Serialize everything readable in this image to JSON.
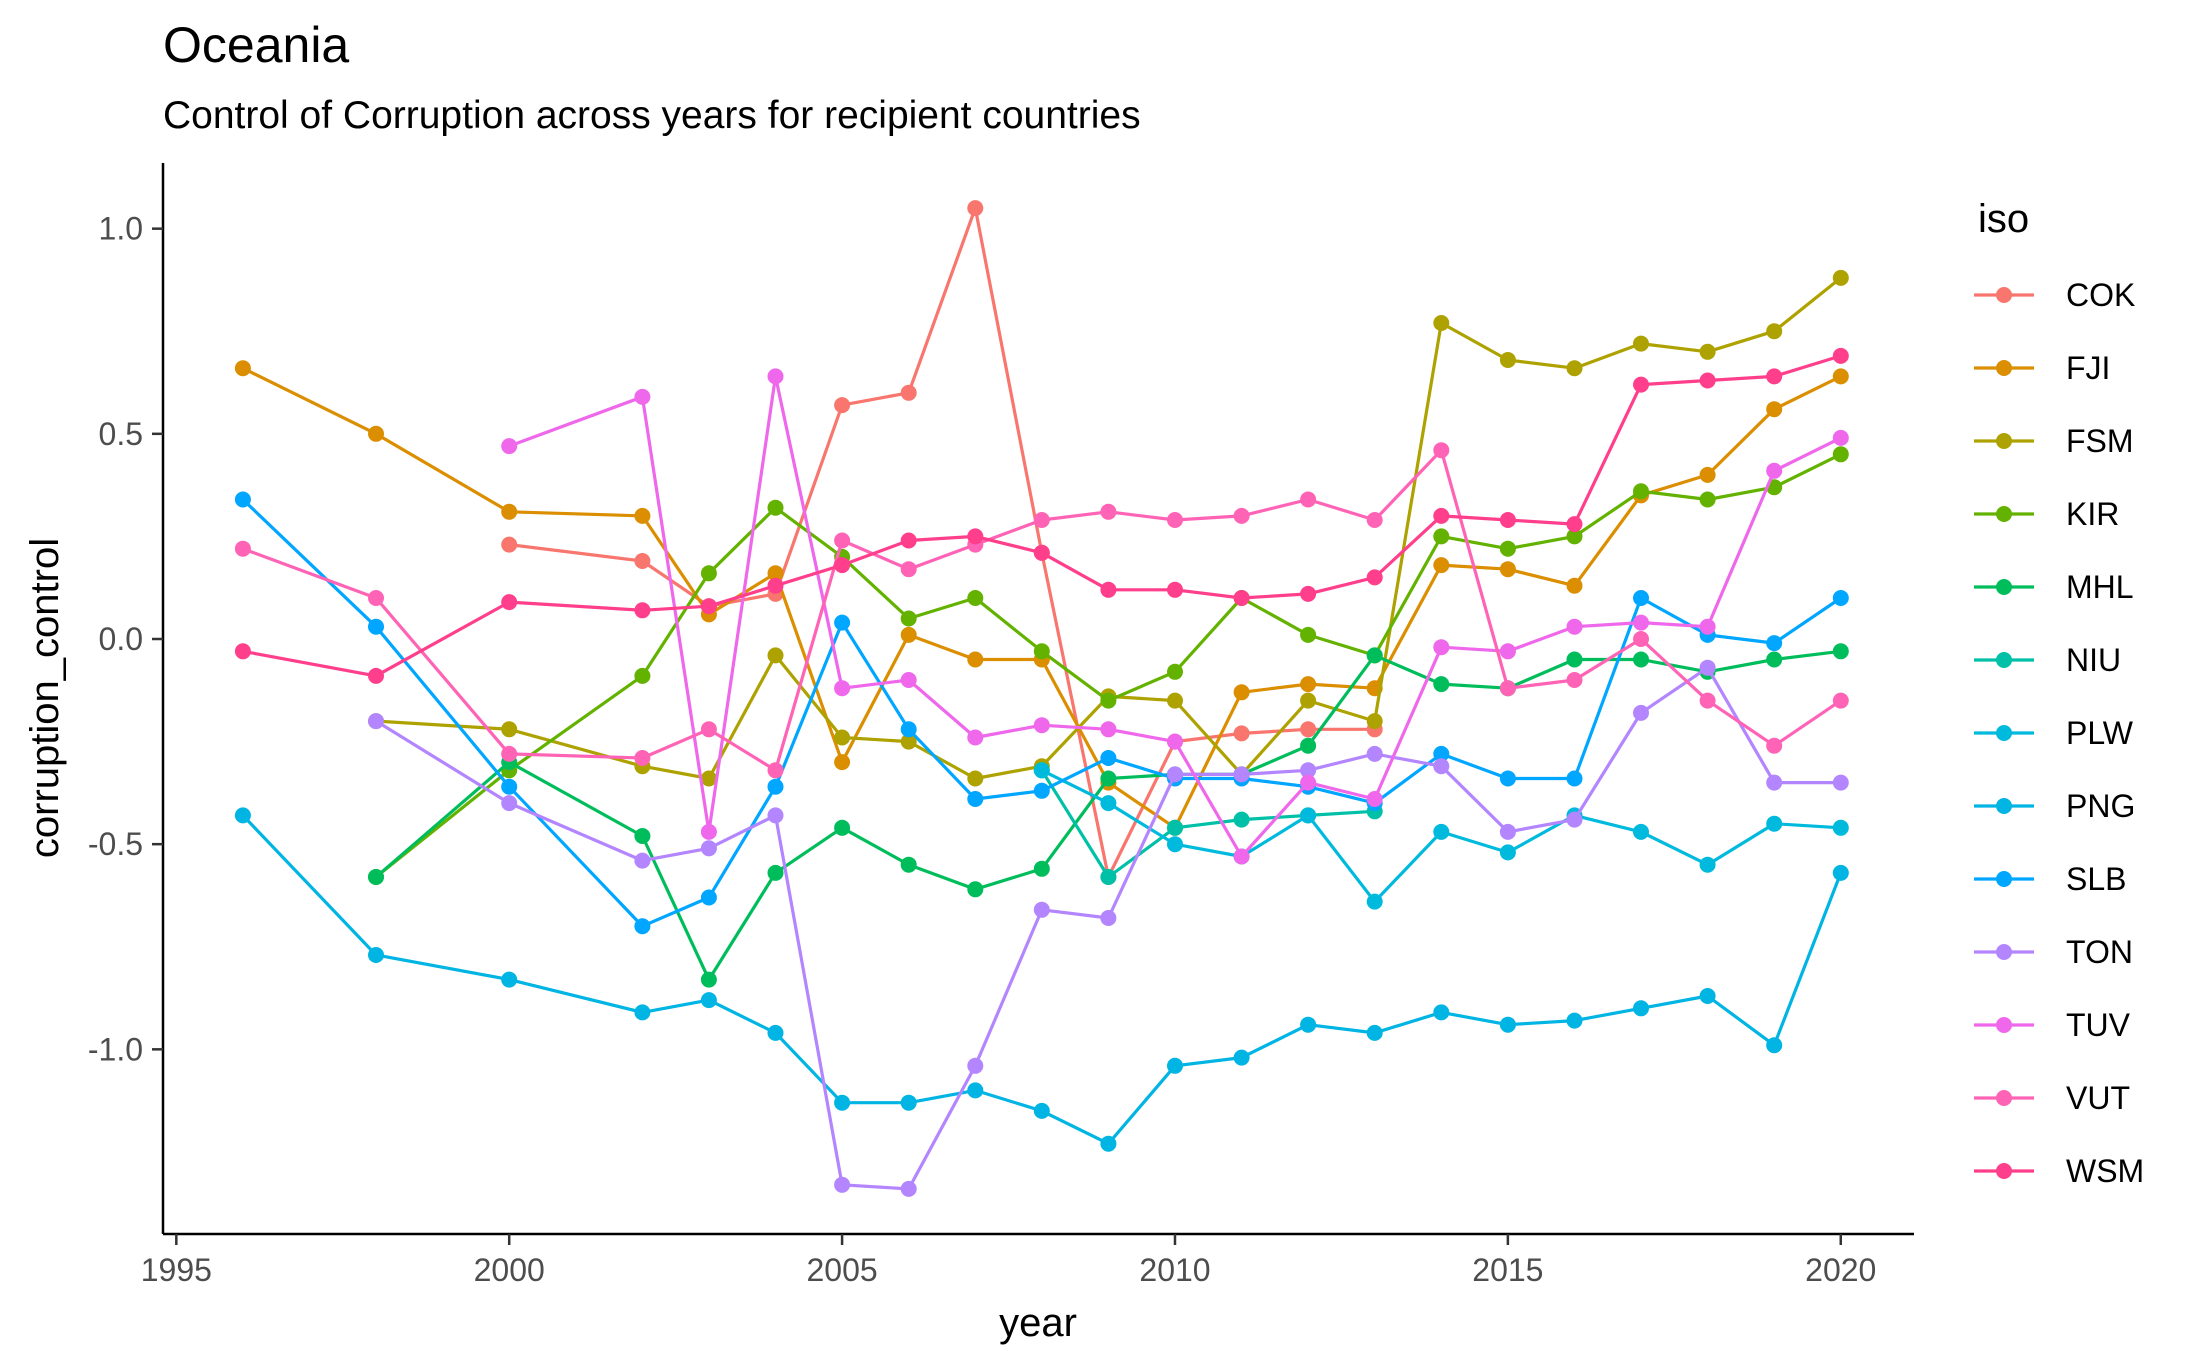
{
  "chart_data": {
    "type": "line",
    "title": "Oceania",
    "subtitle": "Control of Corruption across years for recipient countries",
    "xlabel": "year",
    "ylabel": "corruption_control",
    "xlim": [
      1994.8,
      2021.1
    ],
    "ylim": [
      -1.45,
      1.16
    ],
    "xticks": [
      1995,
      2000,
      2005,
      2010,
      2015,
      2020
    ],
    "yticks": [
      -1.0,
      -0.5,
      0.0,
      0.5,
      1.0
    ],
    "ytick_labels": [
      "-1.0",
      "-0.5",
      "0.0",
      "0.5",
      "1.0"
    ],
    "legend_title": "iso",
    "legend_position": "right",
    "grid": false,
    "series": [
      {
        "name": "COK",
        "color": "#F8766D",
        "points": [
          [
            2000,
            0.23
          ],
          [
            2002,
            0.19
          ],
          [
            2003,
            0.08
          ],
          [
            2004,
            0.11
          ],
          [
            2005,
            0.57
          ],
          [
            2006,
            0.6
          ],
          [
            2007,
            1.05
          ],
          [
            2008,
            0.21
          ],
          [
            2009,
            -0.58
          ],
          [
            2010,
            -0.25
          ],
          [
            2011,
            -0.23
          ],
          [
            2012,
            -0.22
          ],
          [
            2013,
            -0.22
          ]
        ]
      },
      {
        "name": "FJI",
        "color": "#DB8E00",
        "points": [
          [
            1996,
            0.66
          ],
          [
            1998,
            0.5
          ],
          [
            2000,
            0.31
          ],
          [
            2002,
            0.3
          ],
          [
            2003,
            0.06
          ],
          [
            2004,
            0.16
          ],
          [
            2005,
            -0.3
          ],
          [
            2006,
            0.01
          ],
          [
            2007,
            -0.05
          ],
          [
            2008,
            -0.05
          ],
          [
            2009,
            -0.35
          ],
          [
            2010,
            -0.46
          ],
          [
            2011,
            -0.13
          ],
          [
            2012,
            -0.11
          ],
          [
            2013,
            -0.12
          ],
          [
            2014,
            0.18
          ],
          [
            2015,
            0.17
          ],
          [
            2016,
            0.13
          ],
          [
            2017,
            0.35
          ],
          [
            2018,
            0.4
          ],
          [
            2019,
            0.56
          ],
          [
            2020,
            0.64
          ]
        ]
      },
      {
        "name": "FSM",
        "color": "#AEA200",
        "points": [
          [
            1998,
            -0.2
          ],
          [
            2000,
            -0.22
          ],
          [
            2002,
            -0.31
          ],
          [
            2003,
            -0.34
          ],
          [
            2004,
            -0.04
          ],
          [
            2005,
            -0.24
          ],
          [
            2006,
            -0.25
          ],
          [
            2007,
            -0.34
          ],
          [
            2008,
            -0.31
          ],
          [
            2009,
            -0.14
          ],
          [
            2010,
            -0.15
          ],
          [
            2011,
            -0.33
          ],
          [
            2012,
            -0.15
          ],
          [
            2013,
            -0.2
          ],
          [
            2014,
            0.77
          ],
          [
            2015,
            0.68
          ],
          [
            2016,
            0.66
          ],
          [
            2017,
            0.72
          ],
          [
            2018,
            0.7
          ],
          [
            2019,
            0.75
          ],
          [
            2020,
            0.88
          ]
        ]
      },
      {
        "name": "KIR",
        "color": "#64B200",
        "points": [
          [
            1998,
            -0.58
          ],
          [
            2000,
            -0.32
          ],
          [
            2002,
            -0.09
          ],
          [
            2003,
            0.16
          ],
          [
            2004,
            0.32
          ],
          [
            2005,
            0.2
          ],
          [
            2006,
            0.05
          ],
          [
            2007,
            0.1
          ],
          [
            2008,
            -0.03
          ],
          [
            2009,
            -0.15
          ],
          [
            2010,
            -0.08
          ],
          [
            2011,
            0.1
          ],
          [
            2012,
            0.01
          ],
          [
            2013,
            -0.04
          ],
          [
            2014,
            0.25
          ],
          [
            2015,
            0.22
          ],
          [
            2016,
            0.25
          ],
          [
            2017,
            0.36
          ],
          [
            2018,
            0.34
          ],
          [
            2019,
            0.37
          ],
          [
            2020,
            0.45
          ]
        ]
      },
      {
        "name": "MHL",
        "color": "#00BD5C",
        "points": [
          [
            1998,
            -0.58
          ],
          [
            2000,
            -0.3
          ],
          [
            2002,
            -0.48
          ],
          [
            2003,
            -0.83
          ],
          [
            2004,
            -0.57
          ],
          [
            2005,
            -0.46
          ],
          [
            2006,
            -0.55
          ],
          [
            2007,
            -0.61
          ],
          [
            2008,
            -0.56
          ],
          [
            2009,
            -0.34
          ],
          [
            2010,
            -0.33
          ],
          [
            2011,
            -0.33
          ],
          [
            2012,
            -0.26
          ],
          [
            2013,
            -0.04
          ],
          [
            2014,
            -0.11
          ],
          [
            2015,
            -0.12
          ],
          [
            2016,
            -0.05
          ],
          [
            2017,
            -0.05
          ],
          [
            2018,
            -0.08
          ],
          [
            2019,
            -0.05
          ],
          [
            2020,
            -0.03
          ]
        ]
      },
      {
        "name": "NIU",
        "color": "#00C1A7",
        "points": [
          [
            2008,
            -0.32
          ],
          [
            2009,
            -0.58
          ],
          [
            2010,
            -0.46
          ],
          [
            2011,
            -0.44
          ],
          [
            2012,
            -0.43
          ],
          [
            2013,
            -0.42
          ]
        ]
      },
      {
        "name": "PLW",
        "color": "#00BADE",
        "points": [
          [
            2008,
            -0.32
          ],
          [
            2009,
            -0.4
          ],
          [
            2010,
            -0.5
          ],
          [
            2011,
            -0.53
          ],
          [
            2012,
            -0.43
          ],
          [
            2013,
            -0.64
          ],
          [
            2014,
            -0.47
          ],
          [
            2015,
            -0.52
          ],
          [
            2016,
            -0.43
          ],
          [
            2017,
            -0.47
          ],
          [
            2018,
            -0.55
          ],
          [
            2019,
            -0.45
          ],
          [
            2020,
            -0.46
          ]
        ]
      },
      {
        "name": "PNG",
        "color": "#00B4E3",
        "points": [
          [
            1996,
            -0.43
          ],
          [
            1998,
            -0.77
          ],
          [
            2000,
            -0.83
          ],
          [
            2002,
            -0.91
          ],
          [
            2003,
            -0.88
          ],
          [
            2004,
            -0.96
          ],
          [
            2005,
            -1.13
          ],
          [
            2006,
            -1.13
          ],
          [
            2007,
            -1.1
          ],
          [
            2008,
            -1.15
          ],
          [
            2009,
            -1.23
          ],
          [
            2010,
            -1.04
          ],
          [
            2011,
            -1.02
          ],
          [
            2012,
            -0.94
          ],
          [
            2013,
            -0.96
          ],
          [
            2014,
            -0.91
          ],
          [
            2015,
            -0.94
          ],
          [
            2016,
            -0.93
          ],
          [
            2017,
            -0.9
          ],
          [
            2018,
            -0.87
          ],
          [
            2019,
            -0.99
          ],
          [
            2020,
            -0.57
          ]
        ]
      },
      {
        "name": "SLB",
        "color": "#00A6FF",
        "points": [
          [
            1996,
            0.34
          ],
          [
            1998,
            0.03
          ],
          [
            2000,
            -0.36
          ],
          [
            2002,
            -0.7
          ],
          [
            2003,
            -0.63
          ],
          [
            2004,
            -0.36
          ],
          [
            2005,
            0.04
          ],
          [
            2006,
            -0.22
          ],
          [
            2007,
            -0.39
          ],
          [
            2008,
            -0.37
          ],
          [
            2009,
            -0.29
          ],
          [
            2010,
            -0.34
          ],
          [
            2011,
            -0.34
          ],
          [
            2012,
            -0.36
          ],
          [
            2013,
            -0.4
          ],
          [
            2014,
            -0.28
          ],
          [
            2015,
            -0.34
          ],
          [
            2016,
            -0.34
          ],
          [
            2017,
            0.1
          ],
          [
            2018,
            0.01
          ],
          [
            2019,
            -0.01
          ],
          [
            2020,
            0.1
          ]
        ]
      },
      {
        "name": "TON",
        "color": "#B385FF",
        "points": [
          [
            1998,
            -0.2
          ],
          [
            2000,
            -0.4
          ],
          [
            2002,
            -0.54
          ],
          [
            2003,
            -0.51
          ],
          [
            2004,
            -0.43
          ],
          [
            2005,
            -1.33
          ],
          [
            2006,
            -1.34
          ],
          [
            2007,
            -1.04
          ],
          [
            2008,
            -0.66
          ],
          [
            2009,
            -0.68
          ],
          [
            2010,
            -0.33
          ],
          [
            2011,
            -0.33
          ],
          [
            2012,
            -0.32
          ],
          [
            2013,
            -0.28
          ],
          [
            2014,
            -0.31
          ],
          [
            2015,
            -0.47
          ],
          [
            2016,
            -0.44
          ],
          [
            2017,
            -0.18
          ],
          [
            2018,
            -0.07
          ],
          [
            2019,
            -0.35
          ],
          [
            2020,
            -0.35
          ]
        ]
      },
      {
        "name": "TUV",
        "color": "#EF67EB",
        "points": [
          [
            2000,
            0.47
          ],
          [
            2002,
            0.59
          ],
          [
            2003,
            -0.47
          ],
          [
            2004,
            0.64
          ],
          [
            2005,
            -0.12
          ],
          [
            2006,
            -0.1
          ],
          [
            2007,
            -0.24
          ],
          [
            2008,
            -0.21
          ],
          [
            2009,
            -0.22
          ],
          [
            2010,
            -0.25
          ],
          [
            2011,
            -0.53
          ],
          [
            2012,
            -0.35
          ],
          [
            2013,
            -0.39
          ],
          [
            2014,
            -0.02
          ],
          [
            2015,
            -0.03
          ],
          [
            2016,
            0.03
          ],
          [
            2017,
            0.04
          ],
          [
            2018,
            0.03
          ],
          [
            2019,
            0.41
          ],
          [
            2020,
            0.49
          ]
        ]
      },
      {
        "name": "VUT",
        "color": "#FF63B6",
        "points": [
          [
            1996,
            0.22
          ],
          [
            1998,
            0.1
          ],
          [
            2000,
            -0.28
          ],
          [
            2002,
            -0.29
          ],
          [
            2003,
            -0.22
          ],
          [
            2004,
            -0.32
          ],
          [
            2005,
            0.24
          ],
          [
            2006,
            0.17
          ],
          [
            2007,
            0.23
          ],
          [
            2008,
            0.29
          ],
          [
            2009,
            0.31
          ],
          [
            2010,
            0.29
          ],
          [
            2011,
            0.3
          ],
          [
            2012,
            0.34
          ],
          [
            2013,
            0.29
          ],
          [
            2014,
            0.46
          ],
          [
            2015,
            -0.12
          ],
          [
            2016,
            -0.1
          ],
          [
            2017,
            0.0
          ],
          [
            2018,
            -0.15
          ],
          [
            2019,
            -0.26
          ],
          [
            2020,
            -0.15
          ]
        ]
      },
      {
        "name": "WSM",
        "color": "#FF3F8C",
        "points": [
          [
            1996,
            -0.03
          ],
          [
            1998,
            -0.09
          ],
          [
            2000,
            0.09
          ],
          [
            2002,
            0.07
          ],
          [
            2003,
            0.08
          ],
          [
            2004,
            0.13
          ],
          [
            2005,
            0.18
          ],
          [
            2006,
            0.24
          ],
          [
            2007,
            0.25
          ],
          [
            2008,
            0.21
          ],
          [
            2009,
            0.12
          ],
          [
            2010,
            0.12
          ],
          [
            2011,
            0.1
          ],
          [
            2012,
            0.11
          ],
          [
            2013,
            0.15
          ],
          [
            2014,
            0.3
          ],
          [
            2015,
            0.29
          ],
          [
            2016,
            0.28
          ],
          [
            2017,
            0.62
          ],
          [
            2018,
            0.63
          ],
          [
            2019,
            0.64
          ],
          [
            2020,
            0.69
          ]
        ]
      }
    ]
  }
}
